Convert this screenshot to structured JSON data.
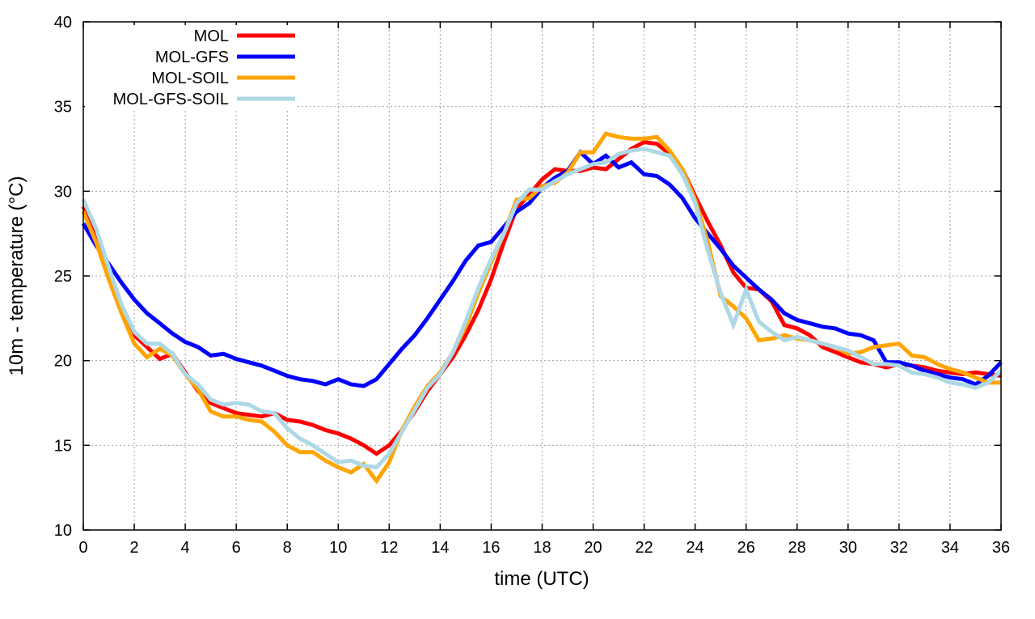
{
  "chart_data": {
    "type": "line",
    "title": "",
    "xlabel": "time (UTC)",
    "ylabel": "10m - temperature (°C)",
    "xlim": [
      0,
      36
    ],
    "ylim": [
      10,
      40
    ],
    "xticks": [
      0,
      2,
      4,
      6,
      8,
      10,
      12,
      14,
      16,
      18,
      20,
      22,
      24,
      26,
      28,
      30,
      32,
      34,
      36
    ],
    "yticks": [
      10,
      15,
      20,
      25,
      30,
      35,
      40
    ],
    "grid": true,
    "legend_position": "top-left",
    "x_step": 0.5,
    "series": [
      {
        "name": "MOL",
        "color": "#ff0000",
        "values": [
          29.1,
          27.5,
          25,
          23,
          21.5,
          20.8,
          20.1,
          20.4,
          19.3,
          18.2,
          17.5,
          17.2,
          16.9,
          16.8,
          16.7,
          16.9,
          16.5,
          16.4,
          16.2,
          15.9,
          15.7,
          15.4,
          15.0,
          14.5,
          15.0,
          15.9,
          17.0,
          18.2,
          19.2,
          20.2,
          21.5,
          23.0,
          24.8,
          27.0,
          29.0,
          29.8,
          30.7,
          31.3,
          31.2,
          31.2,
          31.4,
          31.3,
          31.9,
          32.5,
          32.9,
          32.8,
          32.2,
          31.3,
          29.7,
          28.2,
          26.8,
          25.2,
          24.3,
          24.2,
          23.5,
          22.1,
          21.9,
          21.5,
          20.8,
          20.5,
          20.2,
          19.9,
          19.8,
          19.6,
          19.8,
          19.7,
          19.6,
          19.4,
          19.3,
          19.2,
          19.3,
          19.2,
          19.1
        ]
      },
      {
        "name": "MOL-GFS",
        "color": "#0000ff",
        "values": [
          28.1,
          26.8,
          25.7,
          24.6,
          23.6,
          22.8,
          22.2,
          21.6,
          21.1,
          20.8,
          20.3,
          20.4,
          20.1,
          19.9,
          19.7,
          19.4,
          19.1,
          18.9,
          18.8,
          18.6,
          18.9,
          18.6,
          18.5,
          18.9,
          19.8,
          20.7,
          21.5,
          22.5,
          23.6,
          24.7,
          25.9,
          26.8,
          27.0,
          27.9,
          28.8,
          29.3,
          30.2,
          30.8,
          31.2,
          32.3,
          31.6,
          32.1,
          31.4,
          31.7,
          31.0,
          30.9,
          30.4,
          29.6,
          28.4,
          27.5,
          26.6,
          25.6,
          24.9,
          24.2,
          23.6,
          22.8,
          22.4,
          22.2,
          22.0,
          21.9,
          21.6,
          21.5,
          21.2,
          19.9,
          19.9,
          19.7,
          19.4,
          19.2,
          19.0,
          18.9,
          18.6,
          19.1,
          19.9
        ]
      },
      {
        "name": "MOL-SOIL",
        "color": "#ffa500",
        "values": [
          28.8,
          27.0,
          24.8,
          22.8,
          21.0,
          20.2,
          20.7,
          20.3,
          19.2,
          18.3,
          17.0,
          16.7,
          16.7,
          16.5,
          16.4,
          15.8,
          15.0,
          14.6,
          14.6,
          14.1,
          13.7,
          13.4,
          13.9,
          12.9,
          14.0,
          15.9,
          17.3,
          18.5,
          19.3,
          20.5,
          22.0,
          24.0,
          25.8,
          27.5,
          29.5,
          29.6,
          30.3,
          30.5,
          31.1,
          32.3,
          32.3,
          33.4,
          33.2,
          33.1,
          33.1,
          33.2,
          32.4,
          31.3,
          29.5,
          27.0,
          23.8,
          23.2,
          22.5,
          21.2,
          21.3,
          21.5,
          21.3,
          21.2,
          21.0,
          20.8,
          20.4,
          20.5,
          20.8,
          20.9,
          21.0,
          20.3,
          20.2,
          19.8,
          19.5,
          19.3,
          19.0,
          18.7,
          18.7
        ]
      },
      {
        "name": "MOL-GFS-SOIL",
        "color": "#add8e6",
        "values": [
          29.5,
          27.8,
          25.5,
          23.3,
          21.7,
          21.0,
          21.0,
          20.4,
          19.2,
          18.6,
          17.7,
          17.4,
          17.5,
          17.4,
          17.0,
          16.9,
          16.0,
          15.4,
          15.0,
          14.5,
          14.0,
          14.1,
          13.8,
          13.7,
          14.5,
          15.8,
          17.1,
          18.4,
          19.2,
          20.5,
          22.3,
          24.3,
          26.0,
          27.5,
          29.3,
          30.1,
          30.1,
          30.6,
          31.0,
          31.3,
          31.6,
          31.7,
          32.2,
          32.4,
          32.5,
          32.3,
          32.1,
          31.0,
          29.3,
          26.5,
          24.0,
          22.1,
          24.2,
          22.3,
          21.7,
          21.2,
          21.4,
          21.2,
          21.0,
          20.8,
          20.6,
          20.2,
          19.8,
          19.8,
          19.7,
          19.3,
          19.2,
          19.0,
          18.7,
          18.6,
          18.4,
          18.7,
          19.4
        ]
      }
    ]
  }
}
